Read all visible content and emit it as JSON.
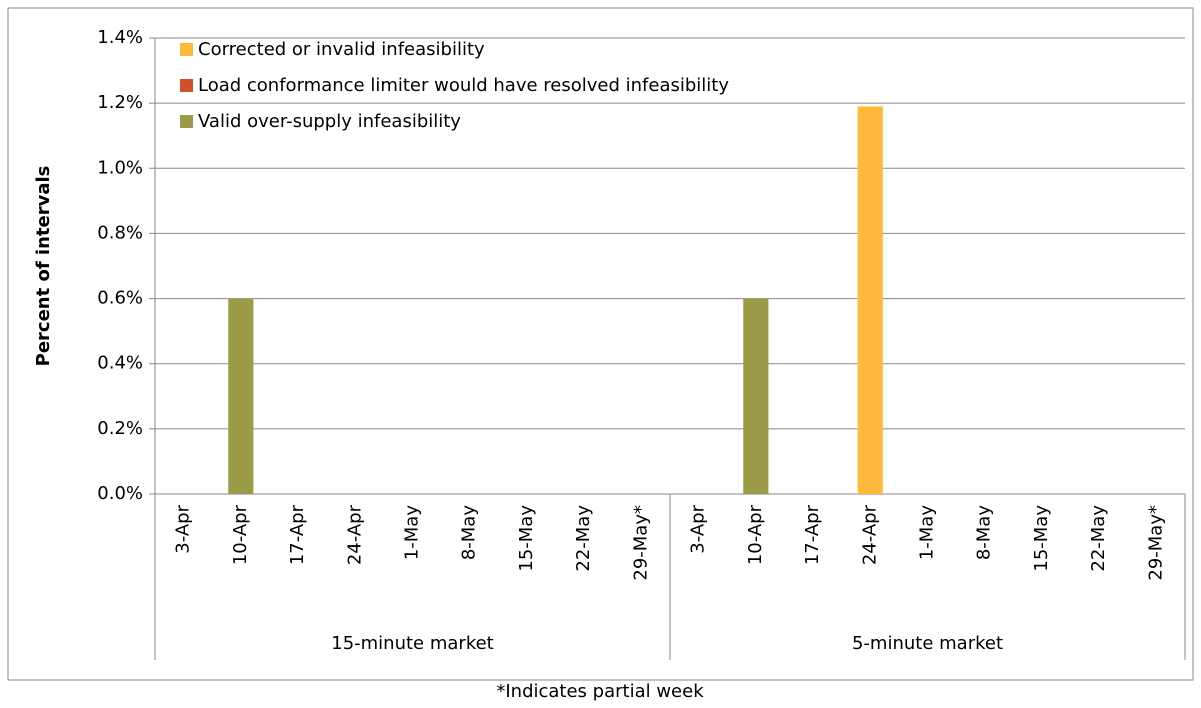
{
  "chart_data": {
    "type": "bar",
    "stacked": true,
    "y_label": "Percent of intervals",
    "footnote": "*Indicates partial week",
    "groups": [
      {
        "name": "15-minute market",
        "categories": [
          "3-Apr",
          "10-Apr",
          "17-Apr",
          "24-Apr",
          "1-May",
          "8-May",
          "15-May",
          "22-May",
          "29-May*"
        ]
      },
      {
        "name": "5-minute market",
        "categories": [
          "3-Apr",
          "10-Apr",
          "17-Apr",
          "24-Apr",
          "1-May",
          "8-May",
          "15-May",
          "22-May",
          "29-May*"
        ]
      }
    ],
    "series": [
      {
        "name": "Corrected or invalid infeasibility",
        "color": "#ffb93b",
        "values": [
          0,
          0,
          0,
          0,
          0,
          0,
          0,
          0,
          0,
          0,
          0,
          0,
          1.19,
          0,
          0,
          0,
          0,
          0
        ]
      },
      {
        "name": "Load conformance limiter would have resolved infeasibility",
        "color": "#d0502a",
        "values": [
          0,
          0,
          0,
          0,
          0,
          0,
          0,
          0,
          0,
          0,
          0,
          0,
          0,
          0,
          0,
          0,
          0,
          0
        ]
      },
      {
        "name": "Valid over-supply infeasibility",
        "color": "#9c9c48",
        "values": [
          0,
          0.6,
          0,
          0,
          0,
          0,
          0,
          0,
          0,
          0,
          0.6,
          0,
          0,
          0,
          0,
          0,
          0,
          0
        ]
      }
    ],
    "ylim": [
      0,
      1.4
    ],
    "yticks": [
      {
        "value": 0,
        "label": "0.0%"
      },
      {
        "value": 0.2,
        "label": "0.2%"
      },
      {
        "value": 0.4,
        "label": "0.4%"
      },
      {
        "value": 0.6,
        "label": "0.6%"
      },
      {
        "value": 0.8,
        "label": "0.8%"
      },
      {
        "value": 1.0,
        "label": "1.0%"
      },
      {
        "value": 1.2,
        "label": "1.2%"
      },
      {
        "value": 1.4,
        "label": "1.4%"
      }
    ],
    "grid": true,
    "legend": "upper left"
  }
}
